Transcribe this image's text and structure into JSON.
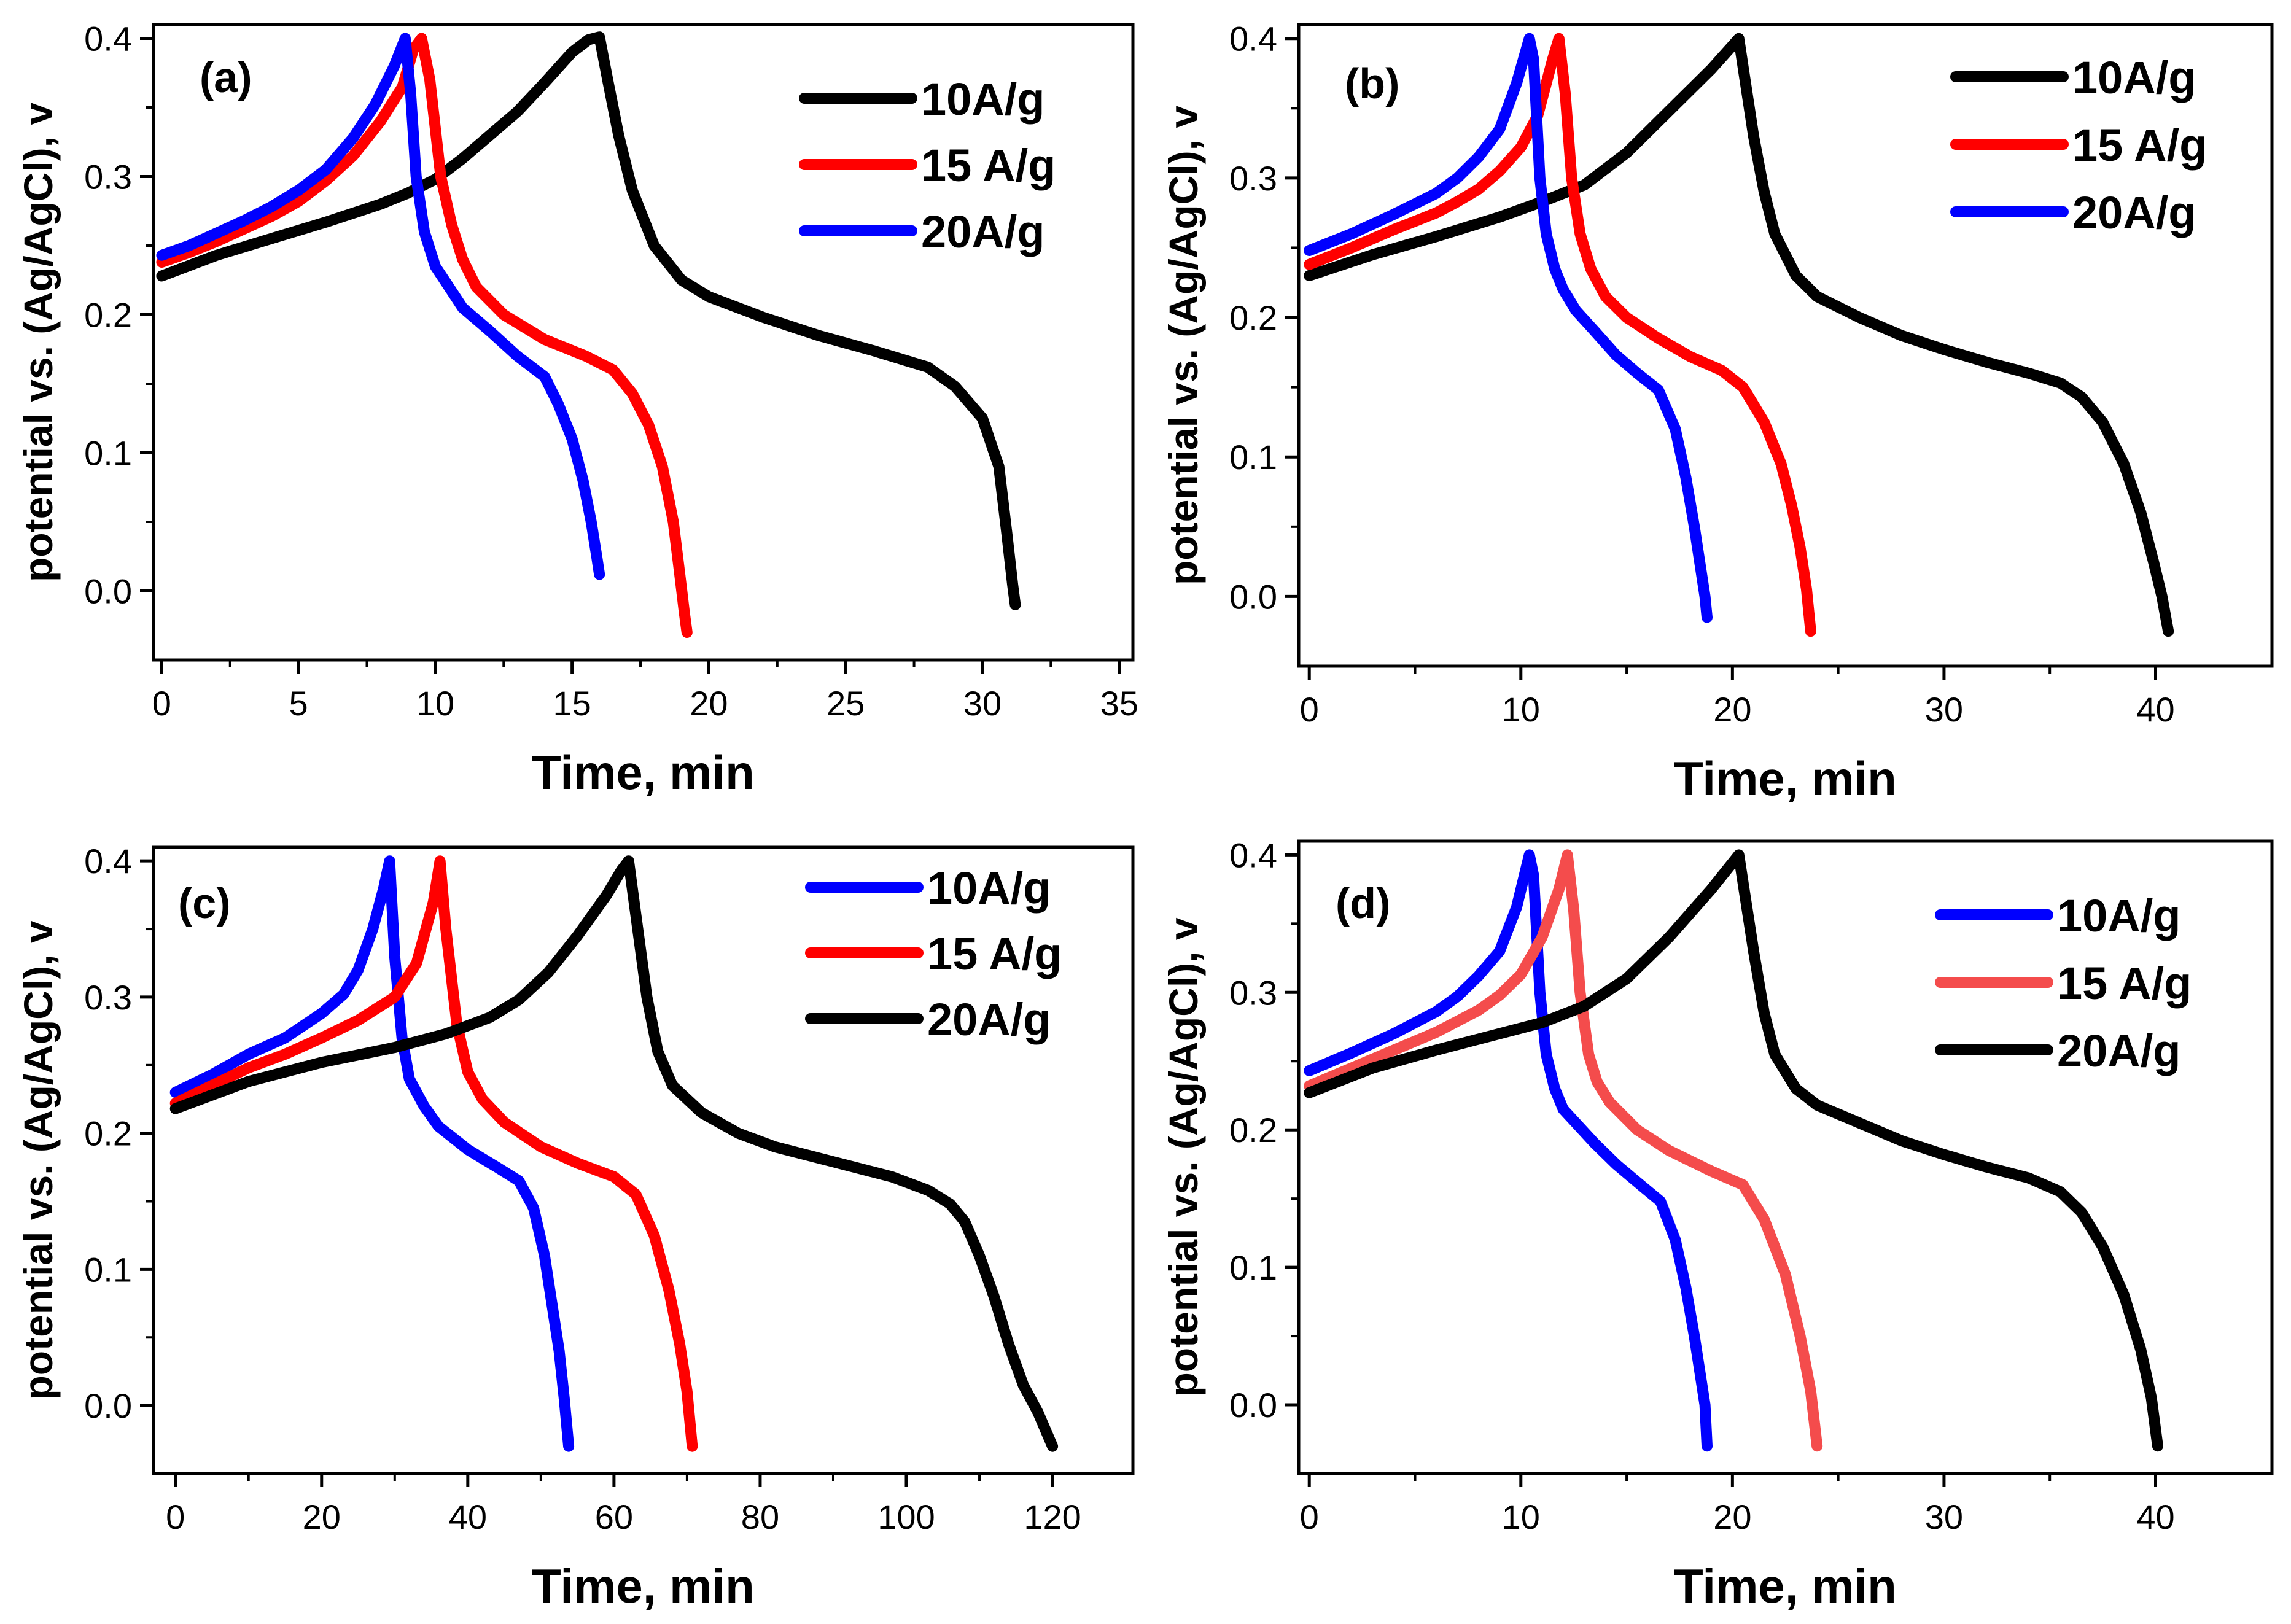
{
  "colors": {
    "black": "#000000",
    "red": "#ff0000",
    "blue": "#0000ff",
    "lightred": "#f44c4c"
  },
  "chart_data": [
    {
      "type": "line",
      "panel_label": "(a)",
      "xlabel": "Time, min",
      "ylabel": "potential vs. (Ag/AgCl), v",
      "xlim": [
        -0.3,
        35.5
      ],
      "ylim": [
        -0.05,
        0.41
      ],
      "xticks": [
        0,
        5,
        10,
        15,
        20,
        25,
        30,
        35
      ],
      "yticks": [
        0.0,
        0.1,
        0.2,
        0.3,
        0.4
      ],
      "series": [
        {
          "name": "10A/g",
          "color": "black",
          "x": [
            0,
            2,
            4,
            6,
            8,
            9,
            10,
            11,
            12,
            13,
            14,
            15,
            15.6,
            16,
            16.3,
            16.7,
            17.2,
            18,
            19,
            20,
            22,
            24,
            26,
            28,
            29,
            30,
            30.6,
            30.9,
            31.1,
            31.2
          ],
          "y": [
            0.228,
            0.243,
            0.255,
            0.267,
            0.28,
            0.288,
            0.298,
            0.313,
            0.33,
            0.347,
            0.368,
            0.39,
            0.399,
            0.401,
            0.37,
            0.33,
            0.29,
            0.25,
            0.225,
            0.213,
            0.198,
            0.185,
            0.174,
            0.162,
            0.148,
            0.125,
            0.09,
            0.04,
            0.005,
            -0.01
          ]
        },
        {
          "name": "15 A/g",
          "color": "red",
          "x": [
            0,
            1,
            2,
            3,
            4,
            5,
            6,
            7,
            8,
            8.8,
            9.2,
            9.5,
            9.8,
            10.2,
            10.6,
            11,
            11.5,
            12.5,
            14,
            15.5,
            16.5,
            17.2,
            17.8,
            18.3,
            18.7,
            18.95,
            19.1,
            19.2
          ],
          "y": [
            0.238,
            0.245,
            0.253,
            0.262,
            0.271,
            0.282,
            0.297,
            0.315,
            0.34,
            0.365,
            0.392,
            0.4,
            0.37,
            0.3,
            0.265,
            0.24,
            0.22,
            0.2,
            0.182,
            0.17,
            0.16,
            0.143,
            0.12,
            0.09,
            0.05,
            0.01,
            -0.015,
            -0.03
          ]
        },
        {
          "name": "20A/g",
          "color": "blue",
          "x": [
            0,
            1,
            2,
            3,
            4,
            5,
            6,
            7,
            7.8,
            8.5,
            8.9,
            9.1,
            9.3,
            9.6,
            10,
            10.5,
            11,
            12,
            13,
            14,
            14.5,
            15,
            15.4,
            15.7,
            15.9,
            16
          ],
          "y": [
            0.243,
            0.25,
            0.259,
            0.268,
            0.278,
            0.29,
            0.305,
            0.328,
            0.352,
            0.38,
            0.4,
            0.36,
            0.3,
            0.26,
            0.235,
            0.22,
            0.205,
            0.188,
            0.17,
            0.155,
            0.135,
            0.11,
            0.08,
            0.05,
            0.025,
            0.012
          ]
        }
      ]
    },
    {
      "type": "line",
      "panel_label": "(b)",
      "xlabel": "Time, min",
      "ylabel": "potential vs. (Ag/AgCl), v",
      "xlim": [
        -0.5,
        45.5
      ],
      "ylim": [
        -0.05,
        0.41
      ],
      "xticks": [
        0,
        10,
        20,
        30,
        40
      ],
      "yticks": [
        0.0,
        0.1,
        0.2,
        0.3,
        0.4
      ],
      "series": [
        {
          "name": "10A/g",
          "color": "black",
          "x": [
            0,
            3,
            6,
            9,
            11,
            13,
            15,
            17,
            19,
            20.3,
            20.6,
            21,
            21.5,
            22,
            23,
            24,
            26,
            28,
            30,
            32,
            34,
            35.5,
            36.5,
            37.5,
            38.5,
            39.3,
            39.9,
            40.3,
            40.6
          ],
          "y": [
            0.23,
            0.245,
            0.258,
            0.272,
            0.283,
            0.295,
            0.318,
            0.348,
            0.378,
            0.4,
            0.37,
            0.33,
            0.29,
            0.26,
            0.23,
            0.215,
            0.2,
            0.187,
            0.177,
            0.168,
            0.16,
            0.153,
            0.143,
            0.125,
            0.095,
            0.06,
            0.025,
            0.0,
            -0.025
          ]
        },
        {
          "name": "15 A/g",
          "color": "red",
          "x": [
            0,
            2,
            4,
            6,
            7,
            8,
            9,
            10,
            10.8,
            11.5,
            11.8,
            12.1,
            12.4,
            12.8,
            13.3,
            14,
            15,
            16.5,
            18,
            19.5,
            20.5,
            21.5,
            22.3,
            22.8,
            23.2,
            23.5,
            23.7
          ],
          "y": [
            0.238,
            0.25,
            0.263,
            0.275,
            0.283,
            0.292,
            0.305,
            0.322,
            0.345,
            0.385,
            0.4,
            0.36,
            0.3,
            0.26,
            0.235,
            0.215,
            0.2,
            0.185,
            0.172,
            0.162,
            0.15,
            0.125,
            0.095,
            0.065,
            0.035,
            0.005,
            -0.025
          ]
        },
        {
          "name": "20A/g",
          "color": "blue",
          "x": [
            0,
            2,
            4,
            6,
            7,
            8,
            9,
            9.8,
            10.4,
            10.6,
            10.9,
            11.2,
            11.6,
            12,
            12.6,
            13.5,
            14.5,
            15.5,
            16.5,
            17.3,
            17.8,
            18.2,
            18.5,
            18.7,
            18.8
          ],
          "y": [
            0.248,
            0.26,
            0.274,
            0.289,
            0.3,
            0.315,
            0.335,
            0.368,
            0.4,
            0.385,
            0.3,
            0.26,
            0.235,
            0.22,
            0.205,
            0.19,
            0.173,
            0.16,
            0.148,
            0.12,
            0.085,
            0.05,
            0.02,
            0.0,
            -0.015
          ]
        }
      ]
    },
    {
      "type": "line",
      "panel_label": "(c)",
      "xlabel": "Time, min",
      "ylabel": "potential vs. (Ag/AgCl), v",
      "xlim": [
        -3,
        131
      ],
      "ylim": [
        -0.05,
        0.41
      ],
      "xticks": [
        0,
        20,
        40,
        60,
        80,
        100,
        120
      ],
      "yticks": [
        0.0,
        0.1,
        0.2,
        0.3,
        0.4
      ],
      "series": [
        {
          "name": "10A/g",
          "color": "blue",
          "x": [
            0,
            5,
            10,
            15,
            20,
            23,
            25,
            27,
            28.5,
            29.3,
            30,
            31,
            32,
            34,
            36,
            40,
            44,
            47,
            49,
            50.5,
            51.5,
            52.5,
            53.2,
            53.8
          ],
          "y": [
            0.23,
            0.243,
            0.258,
            0.27,
            0.288,
            0.302,
            0.32,
            0.35,
            0.38,
            0.4,
            0.33,
            0.27,
            0.24,
            0.22,
            0.205,
            0.188,
            0.175,
            0.165,
            0.145,
            0.11,
            0.075,
            0.04,
            0.005,
            -0.03
          ]
        },
        {
          "name": "15 A/g",
          "color": "red",
          "x": [
            0,
            5,
            10,
            15,
            20,
            25,
            30,
            33,
            35.3,
            36.2,
            37,
            38.5,
            40,
            42,
            45,
            50,
            55,
            60,
            63,
            65.5,
            67.5,
            69,
            70,
            70.7
          ],
          "y": [
            0.222,
            0.235,
            0.248,
            0.258,
            0.27,
            0.283,
            0.3,
            0.325,
            0.37,
            0.4,
            0.35,
            0.28,
            0.245,
            0.225,
            0.208,
            0.19,
            0.178,
            0.168,
            0.155,
            0.125,
            0.085,
            0.045,
            0.01,
            -0.03
          ]
        },
        {
          "name": "20A/g",
          "color": "black",
          "x": [
            0,
            10,
            20,
            30,
            37,
            43,
            47,
            51,
            55,
            59,
            61,
            62,
            63,
            64.5,
            66,
            68,
            72,
            77,
            82,
            90,
            98,
            103,
            106,
            108,
            110,
            112,
            114,
            116,
            118,
            120
          ],
          "y": [
            0.218,
            0.238,
            0.252,
            0.263,
            0.273,
            0.285,
            0.298,
            0.318,
            0.345,
            0.375,
            0.393,
            0.4,
            0.36,
            0.3,
            0.26,
            0.235,
            0.215,
            0.2,
            0.19,
            0.179,
            0.168,
            0.158,
            0.148,
            0.135,
            0.11,
            0.08,
            0.045,
            0.015,
            -0.005,
            -0.03
          ]
        }
      ]
    },
    {
      "type": "line",
      "panel_label": "(d)",
      "xlabel": "Time, min",
      "ylabel": "potential vs. (Ag/AgCl), v",
      "xlim": [
        -0.5,
        45.5
      ],
      "ylim": [
        -0.05,
        0.41
      ],
      "xticks": [
        0,
        10,
        20,
        30,
        40
      ],
      "yticks": [
        0.0,
        0.1,
        0.2,
        0.3,
        0.4
      ],
      "series": [
        {
          "name": "10A/g",
          "color": "blue",
          "x": [
            0,
            2,
            4,
            6,
            7,
            8,
            9,
            9.8,
            10.4,
            10.6,
            10.9,
            11.2,
            11.6,
            12,
            12.6,
            13.5,
            14.5,
            15.5,
            16.6,
            17.3,
            17.8,
            18.2,
            18.5,
            18.7,
            18.8
          ],
          "y": [
            0.243,
            0.256,
            0.27,
            0.286,
            0.297,
            0.312,
            0.33,
            0.362,
            0.4,
            0.385,
            0.3,
            0.255,
            0.23,
            0.215,
            0.205,
            0.19,
            0.175,
            0.162,
            0.148,
            0.12,
            0.085,
            0.05,
            0.02,
            0.0,
            -0.03
          ]
        },
        {
          "name": "15 A/g",
          "color": "lightred",
          "x": [
            0,
            2,
            4,
            6,
            8,
            9,
            10,
            11,
            11.8,
            12.2,
            12.5,
            12.8,
            13.2,
            13.6,
            14.2,
            15.5,
            17,
            19,
            20.5,
            21.5,
            22.5,
            23.2,
            23.7,
            24
          ],
          "y": [
            0.232,
            0.245,
            0.258,
            0.271,
            0.287,
            0.298,
            0.313,
            0.34,
            0.375,
            0.4,
            0.36,
            0.3,
            0.255,
            0.235,
            0.22,
            0.2,
            0.185,
            0.17,
            0.16,
            0.135,
            0.095,
            0.05,
            0.01,
            -0.03
          ]
        },
        {
          "name": "20A/g",
          "color": "black",
          "x": [
            0,
            3,
            6,
            9,
            11,
            13,
            15,
            17,
            19,
            20.3,
            20.6,
            21,
            21.5,
            22,
            23,
            24,
            26,
            28,
            30,
            32,
            34,
            35.5,
            36.5,
            37.5,
            38.5,
            39.3,
            39.8,
            40.1
          ],
          "y": [
            0.227,
            0.245,
            0.258,
            0.27,
            0.278,
            0.29,
            0.31,
            0.34,
            0.375,
            0.4,
            0.37,
            0.33,
            0.285,
            0.255,
            0.23,
            0.218,
            0.205,
            0.192,
            0.182,
            0.173,
            0.165,
            0.155,
            0.14,
            0.115,
            0.08,
            0.04,
            0.005,
            -0.03
          ]
        }
      ]
    }
  ]
}
